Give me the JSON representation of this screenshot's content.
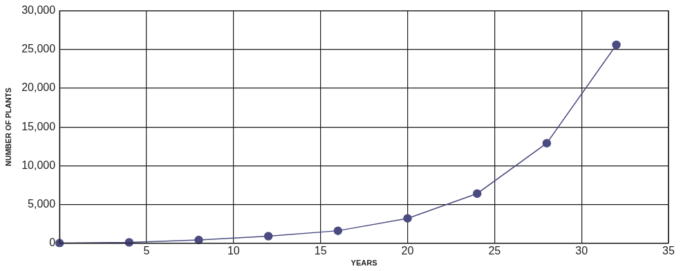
{
  "chart_data": {
    "type": "line",
    "x_label": "YEARS",
    "y_label": "NUMBER OF PLANTS",
    "x": [
      0,
      4,
      8,
      12,
      16,
      20,
      24,
      28,
      32
    ],
    "values": [
      0,
      100,
      400,
      900,
      1600,
      3200,
      6400,
      12900,
      25600
    ],
    "color": "#4b4b82",
    "marker": "circle",
    "xlim": [
      0,
      35
    ],
    "xticks": [
      5,
      10,
      15,
      20,
      25,
      30,
      35
    ],
    "ylim": [
      0,
      30000
    ],
    "yticks": [
      0,
      {
        "value": 5000,
        "label": "5,000"
      },
      {
        "value": 10000,
        "label": "10,000"
      },
      {
        "value": 15000,
        "label": "15,000"
      },
      {
        "value": 20000,
        "label": "20,000"
      },
      {
        "value": 25000,
        "label": "25,000"
      },
      {
        "value": 30000,
        "label": "30,000"
      }
    ],
    "grid": true
  }
}
